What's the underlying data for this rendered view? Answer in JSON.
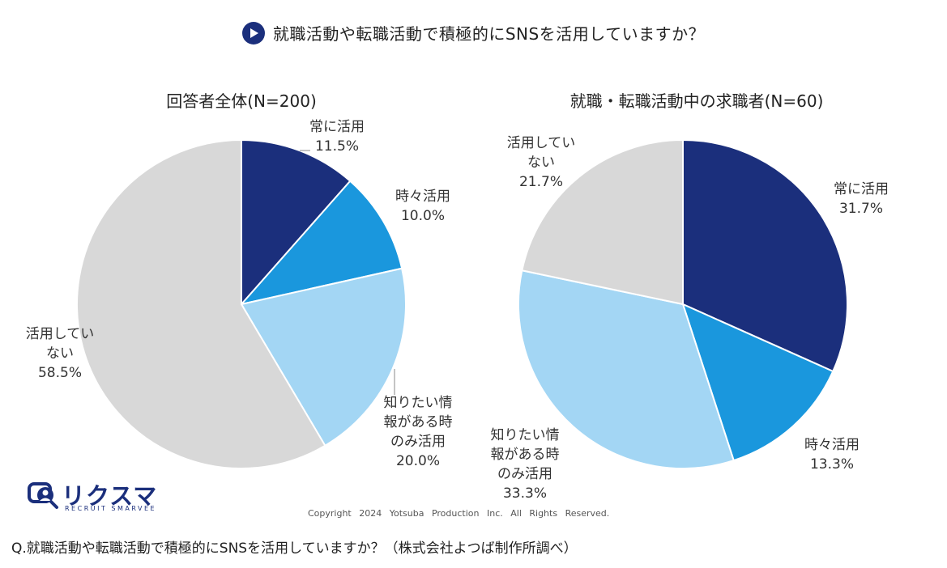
{
  "header": {
    "title": "就職活動や転職活動で積極的にSNSを活用していますか？",
    "icon": "play-icon"
  },
  "chart_data": [
    {
      "type": "pie",
      "title": "回答者全体(N=200)",
      "slices": [
        {
          "label_lines": [
            "常に活用"
          ],
          "value_text": "11.5%",
          "value": 11.5,
          "color": "#1b2f7c"
        },
        {
          "label_lines": [
            "時々活用"
          ],
          "value_text": "10.0%",
          "value": 10.0,
          "color": "#1a97dd"
        },
        {
          "label_lines": [
            "知りたい情",
            "報がある時",
            "のみ活用"
          ],
          "value_text": "20.0%",
          "value": 20.0,
          "color": "#a3d6f4"
        },
        {
          "label_lines": [
            "活用してい",
            "ない"
          ],
          "value_text": "58.5%",
          "value": 58.5,
          "color": "#d8d8d8"
        }
      ]
    },
    {
      "type": "pie",
      "title": "就職・転職活動中の求職者(N=60)",
      "slices": [
        {
          "label_lines": [
            "常に活用"
          ],
          "value_text": "31.7%",
          "value": 31.7,
          "color": "#1b2f7c"
        },
        {
          "label_lines": [
            "時々活用"
          ],
          "value_text": "13.3%",
          "value": 13.3,
          "color": "#1a97dd"
        },
        {
          "label_lines": [
            "知りたい情",
            "報がある時",
            "のみ活用"
          ],
          "value_text": "33.3%",
          "value": 33.3,
          "color": "#a3d6f4"
        },
        {
          "label_lines": [
            "活用してい",
            "ない"
          ],
          "value_text": "21.7%",
          "value": 21.7,
          "color": "#d8d8d8"
        }
      ]
    }
  ],
  "logo": {
    "brand": "リクスマ",
    "sub": "RECRUIT SMARVEE"
  },
  "copyright": "Copyright 2024 Yotsuba Production Inc. All Rights Reserved.",
  "footnote": "Q.就職活動や転職活動で積極的にSNSを活用していますか？（株式会社よつば制作所調べ）"
}
